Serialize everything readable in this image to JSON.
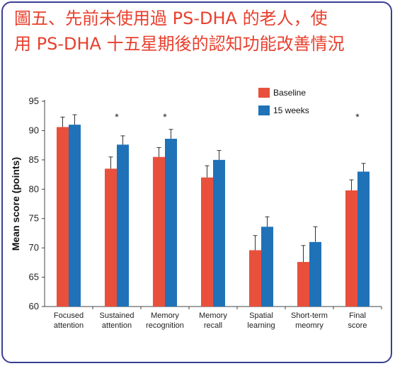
{
  "title_line1": "圖五、先前未使用過 PS-DHA 的老人，使",
  "title_line2": "用 PS-DHA 十五星期後的認知功能改善情況",
  "colors": {
    "baseline": "#e8503c",
    "weeks15": "#1f72b8",
    "border": "#3a3f94",
    "title": "#e8402e"
  },
  "chart_data": {
    "type": "bar",
    "ylabel": "Mean score (points)",
    "ylim": [
      60,
      95
    ],
    "yticks": [
      60,
      65,
      70,
      75,
      80,
      85,
      90,
      95
    ],
    "legend_position": "top-right",
    "categories": [
      [
        "Focused",
        "attention"
      ],
      [
        "Sustained",
        "attention"
      ],
      [
        "Memory",
        "recognition"
      ],
      [
        "Memory",
        "recall"
      ],
      [
        "Spatial",
        "learning"
      ],
      [
        "Short-term",
        "meomry"
      ],
      [
        "Final",
        "score"
      ]
    ],
    "significant": [
      false,
      true,
      true,
      false,
      false,
      false,
      true
    ],
    "series": [
      {
        "name": "Baseline",
        "values": [
          90.6,
          83.5,
          85.5,
          82.0,
          69.6,
          67.6,
          79.8
        ],
        "errors": [
          1.7,
          2.0,
          1.6,
          2.0,
          2.5,
          2.8,
          1.8
        ],
        "color": "#e8503c"
      },
      {
        "name": "15 weeks",
        "values": [
          91.0,
          87.6,
          88.6,
          85.0,
          73.6,
          71.0,
          83.0
        ],
        "errors": [
          1.7,
          1.5,
          1.6,
          1.6,
          1.7,
          2.6,
          1.4
        ],
        "color": "#1f72b8"
      }
    ]
  }
}
